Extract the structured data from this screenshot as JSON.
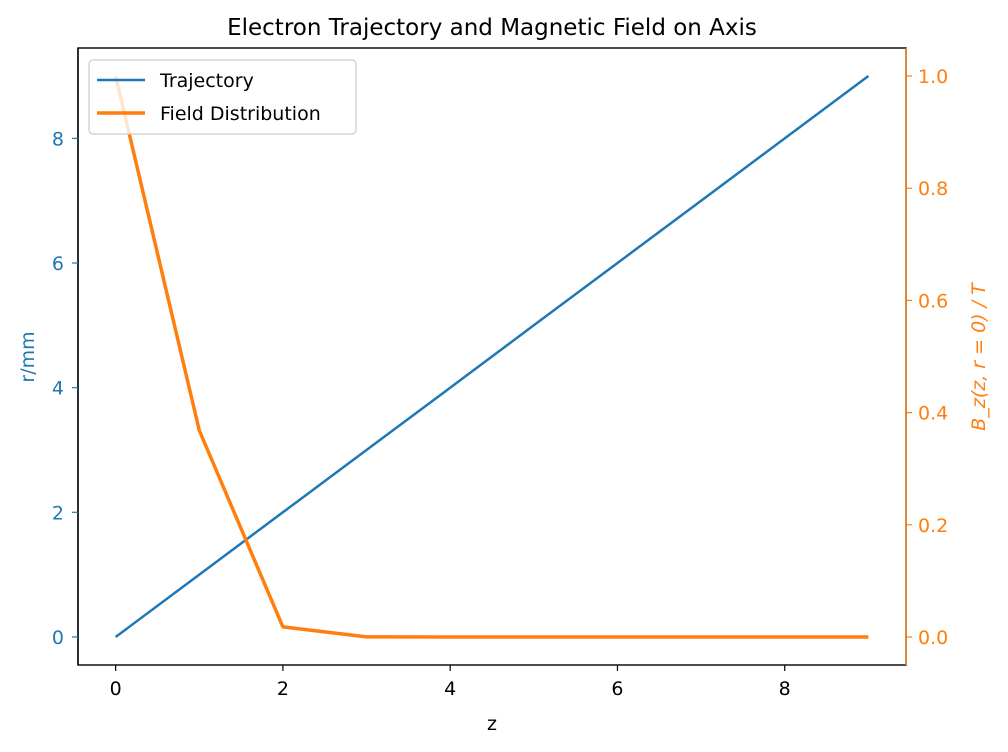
{
  "colors": {
    "trajectory": "#1f77b4",
    "field": "#ff7f0e",
    "axis": "#000000"
  },
  "chart_data": {
    "type": "line",
    "title": "Electron Trajectory and Magnetic Field on Axis",
    "xlabel": "z",
    "ylabel_left": "r/mm",
    "ylabel_right": "B_z(z, r = 0) / T",
    "xlim": [
      -0.45,
      9.45
    ],
    "ylim_left": [
      -0.45,
      9.45
    ],
    "ylim_right": [
      -0.05,
      1.05
    ],
    "x_ticks": [
      0,
      2,
      4,
      6,
      8
    ],
    "y_left_ticks": [
      0,
      2,
      4,
      6,
      8
    ],
    "y_right_ticks": [
      "0.0",
      "0.2",
      "0.4",
      "0.6",
      "0.8",
      "1.0"
    ],
    "grid": false,
    "legend_position": "upper-left",
    "series": [
      {
        "name": "Trajectory",
        "axis": "left",
        "x": [
          0,
          1,
          2,
          3,
          4,
          5,
          6,
          7,
          8,
          9
        ],
        "y": [
          0,
          1,
          2,
          3,
          4,
          5,
          6,
          7,
          8,
          9
        ]
      },
      {
        "name": "Field Distribution",
        "axis": "right",
        "x": [
          0,
          1,
          2,
          3,
          4,
          5,
          6,
          7,
          8,
          9
        ],
        "y": [
          1.0,
          0.368,
          0.018,
          0.0001,
          0.0,
          0.0,
          0.0,
          0.0,
          0.0,
          0.0
        ]
      }
    ]
  }
}
